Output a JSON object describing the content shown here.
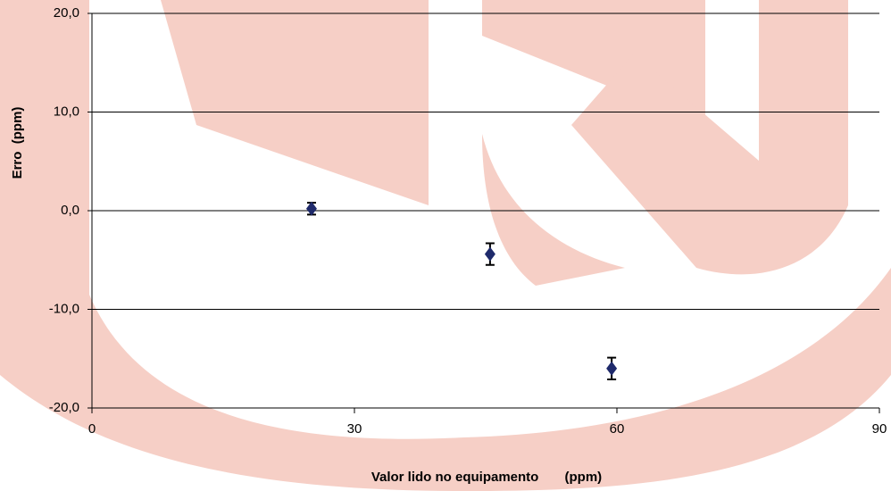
{
  "chart_data": {
    "type": "scatter",
    "x_label": "Valor lido no equipamento       (ppm)",
    "y_label": "Erro  (ppm)",
    "series": [
      {
        "color": "#1f2a6b",
        "x": [
          25.1,
          45.5,
          59.4
        ],
        "values": [
          0.2,
          -4.4,
          -16.0
        ],
        "errors": [
          0.6,
          1.1,
          1.1
        ]
      }
    ],
    "xlim": [
      0,
      90
    ],
    "xticks": [
      0,
      30,
      60,
      90
    ],
    "ylim": [
      -20,
      20
    ],
    "yticks": [
      {
        "value": -20,
        "label": "-20,0"
      },
      {
        "value": -10,
        "label": "-10,0"
      },
      {
        "value": 0,
        "label": "0,0"
      },
      {
        "value": 10,
        "label": "10,0"
      },
      {
        "value": 20,
        "label": "20,0"
      }
    ],
    "grid": true
  }
}
